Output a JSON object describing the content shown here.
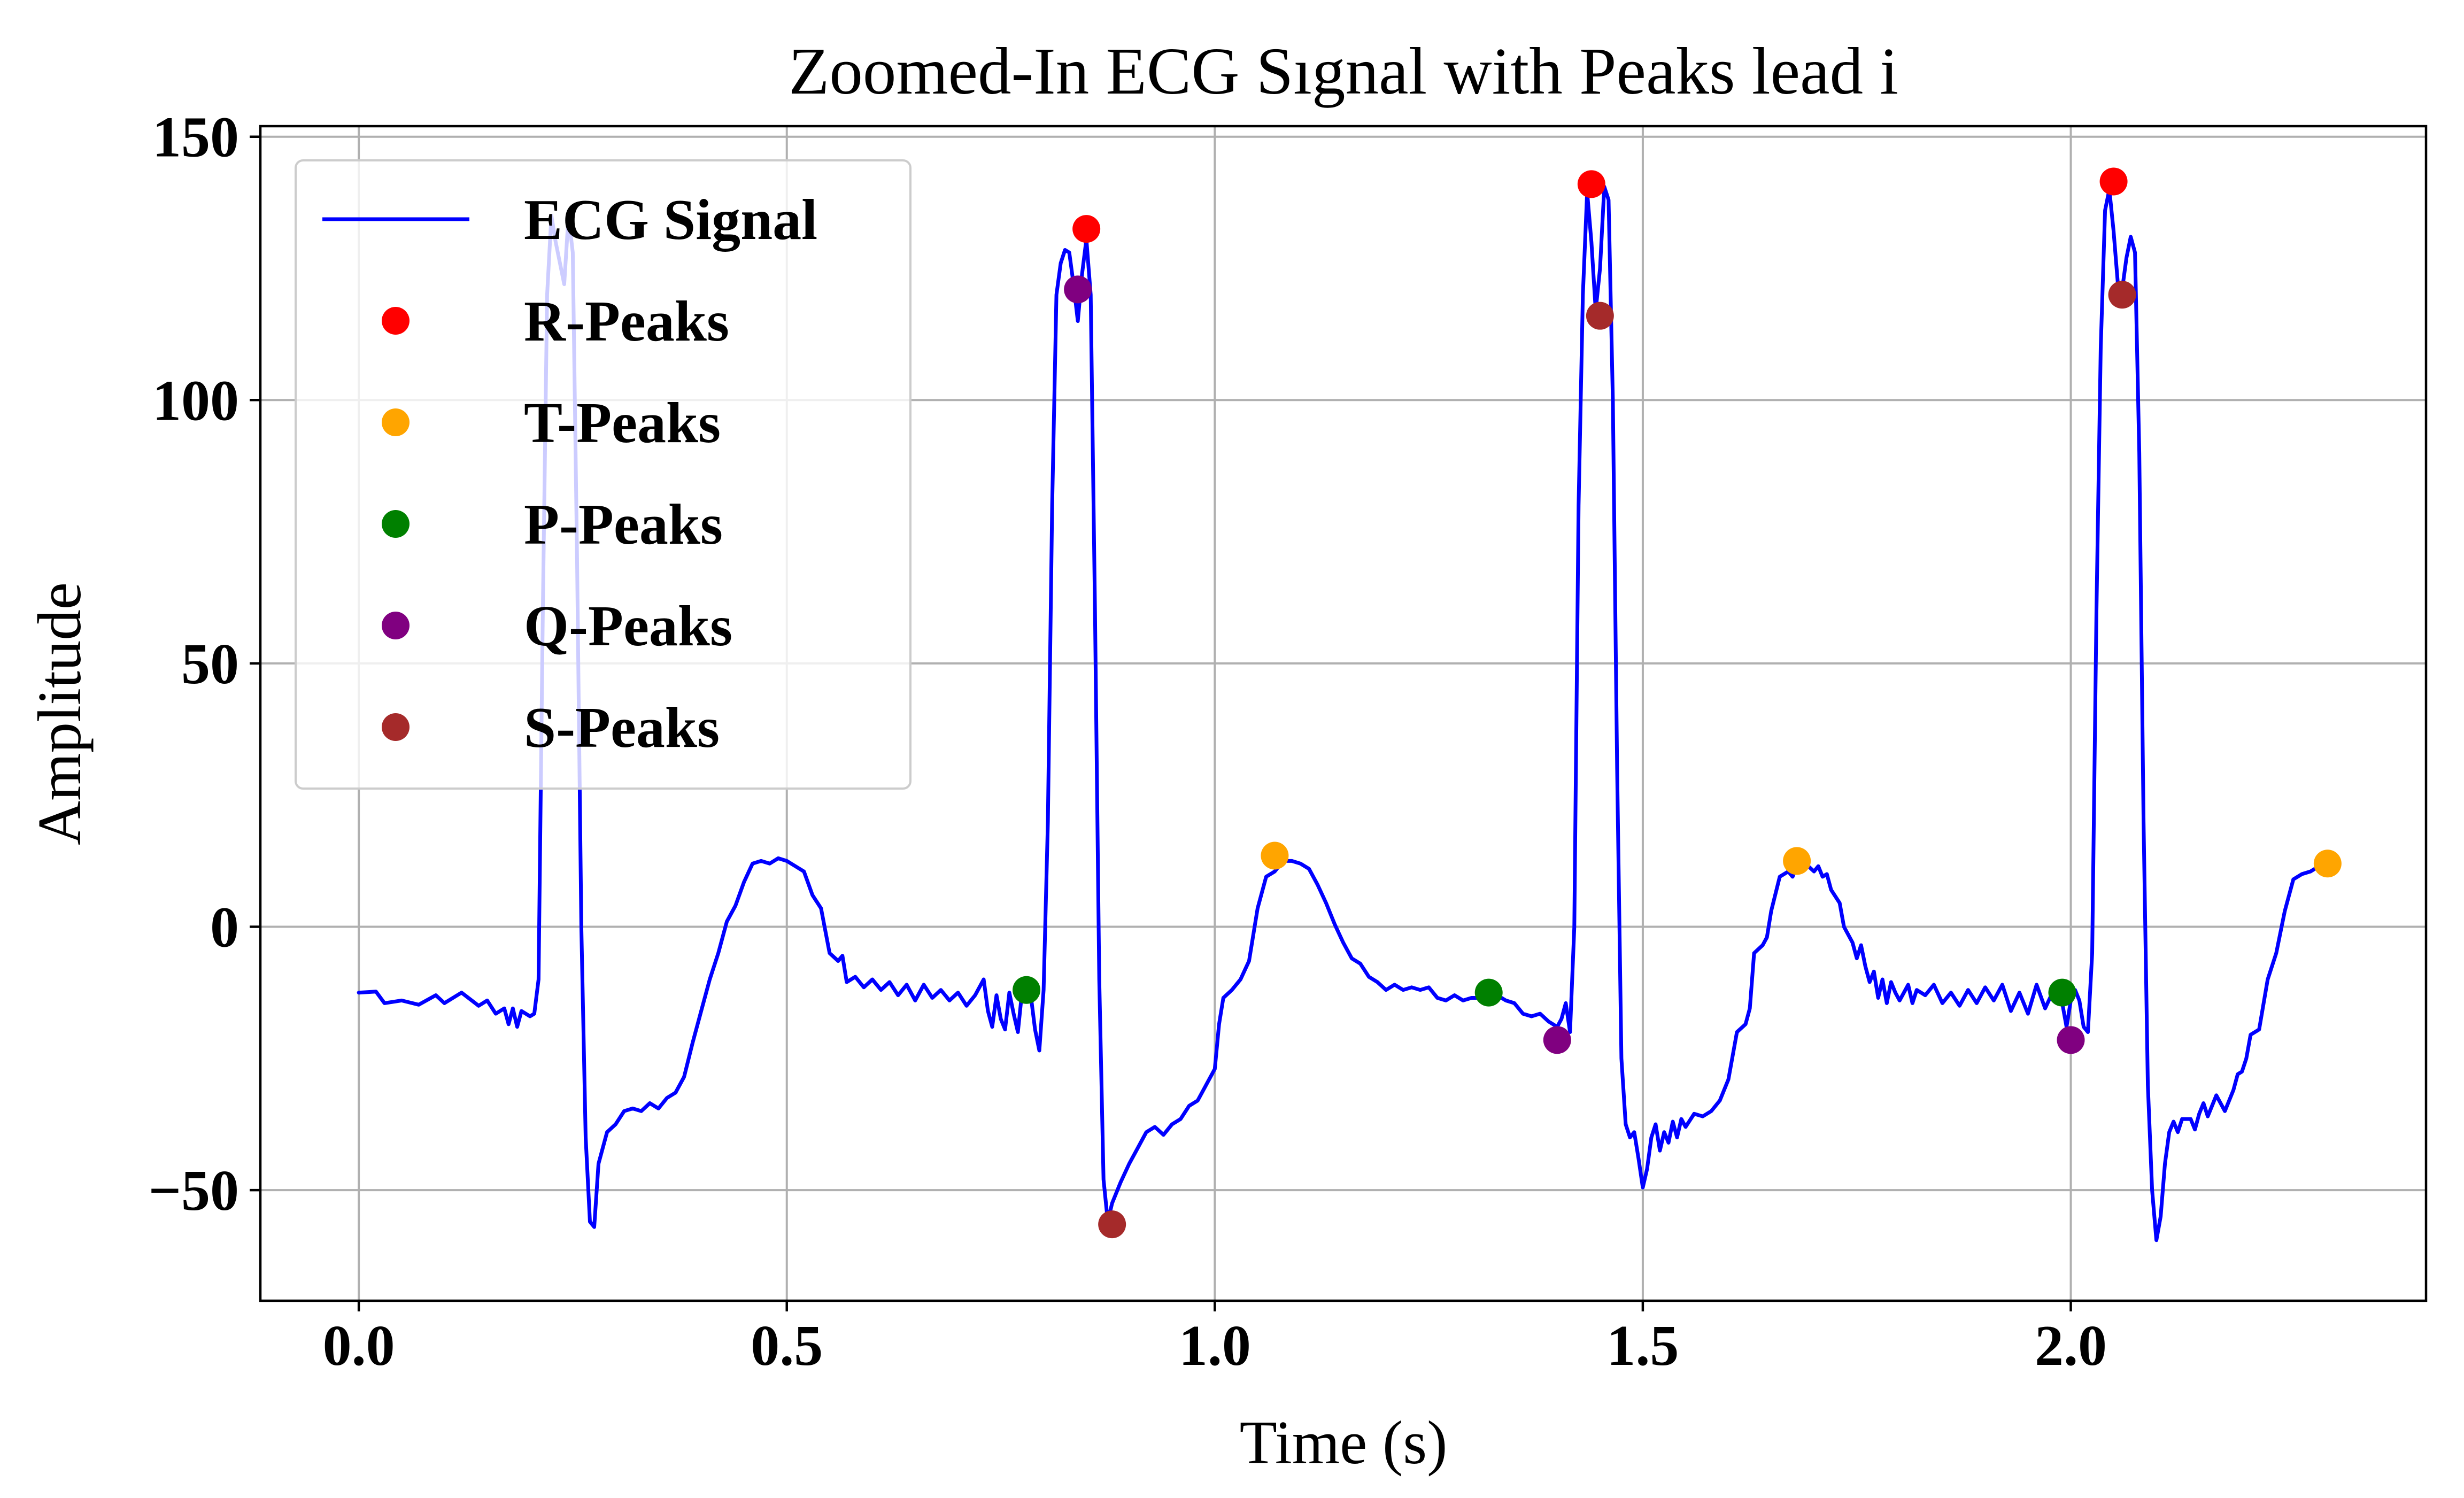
{
  "chart_data": {
    "type": "line",
    "title": "Zoomed-In ECG Sıgnal with Peaks lead i",
    "xlabel": "Time (s)",
    "ylabel": "Amplitude",
    "xlim": [
      -0.115,
      2.415
    ],
    "ylim": [
      -71,
      152
    ],
    "xticks": [
      0.0,
      0.5,
      1.0,
      1.5,
      2.0
    ],
    "xtick_labels": [
      "0.0",
      "0.5",
      "1.0",
      "1.5",
      "2.0"
    ],
    "yticks": [
      -50,
      0,
      50,
      100,
      150
    ],
    "ytick_labels": [
      "−50",
      "0",
      "50",
      "100",
      "150"
    ],
    "grid": true,
    "legend_position": "upper-left",
    "line_series": {
      "name": "ECG Signal",
      "color": "#0000ff",
      "points": [
        [
          0.0,
          -12.5
        ],
        [
          0.02,
          -12.3
        ],
        [
          0.03,
          -14.5
        ],
        [
          0.05,
          -14.0
        ],
        [
          0.07,
          -14.8
        ],
        [
          0.09,
          -13.0
        ],
        [
          0.1,
          -14.5
        ],
        [
          0.12,
          -12.5
        ],
        [
          0.14,
          -15.0
        ],
        [
          0.15,
          -14.0
        ],
        [
          0.16,
          -16.5
        ],
        [
          0.17,
          -15.5
        ],
        [
          0.175,
          -18.5
        ],
        [
          0.18,
          -15.5
        ],
        [
          0.185,
          -19.0
        ],
        [
          0.19,
          -16.0
        ],
        [
          0.2,
          -17.0
        ],
        [
          0.205,
          -16.5
        ],
        [
          0.21,
          -10.0
        ],
        [
          0.215,
          60.0
        ],
        [
          0.22,
          120.0
        ],
        [
          0.225,
          135.0
        ],
        [
          0.23,
          130.0
        ],
        [
          0.24,
          122.0
        ],
        [
          0.245,
          135.0
        ],
        [
          0.25,
          128.0
        ],
        [
          0.255,
          70.0
        ],
        [
          0.26,
          0.0
        ],
        [
          0.265,
          -40.0
        ],
        [
          0.27,
          -56.0
        ],
        [
          0.275,
          -57.0
        ],
        [
          0.28,
          -45.0
        ],
        [
          0.29,
          -39.0
        ],
        [
          0.3,
          -37.5
        ],
        [
          0.31,
          -35.0
        ],
        [
          0.32,
          -34.5
        ],
        [
          0.33,
          -35.0
        ],
        [
          0.34,
          -33.5
        ],
        [
          0.35,
          -34.5
        ],
        [
          0.36,
          -32.5
        ],
        [
          0.37,
          -31.5
        ],
        [
          0.38,
          -28.5
        ],
        [
          0.39,
          -22.0
        ],
        [
          0.4,
          -16.0
        ],
        [
          0.41,
          -10.0
        ],
        [
          0.42,
          -5.0
        ],
        [
          0.43,
          1.0
        ],
        [
          0.44,
          4.0
        ],
        [
          0.45,
          8.5
        ],
        [
          0.46,
          12.0
        ],
        [
          0.47,
          12.5
        ],
        [
          0.48,
          12.0
        ],
        [
          0.49,
          13.0
        ],
        [
          0.5,
          12.5
        ],
        [
          0.51,
          11.5
        ],
        [
          0.52,
          10.5
        ],
        [
          0.53,
          6.0
        ],
        [
          0.54,
          3.5
        ],
        [
          0.55,
          -5.0
        ],
        [
          0.56,
          -6.5
        ],
        [
          0.565,
          -5.5
        ],
        [
          0.57,
          -10.5
        ],
        [
          0.58,
          -9.5
        ],
        [
          0.59,
          -11.5
        ],
        [
          0.6,
          -10.0
        ],
        [
          0.61,
          -12.0
        ],
        [
          0.62,
          -10.5
        ],
        [
          0.63,
          -13.0
        ],
        [
          0.64,
          -11.0
        ],
        [
          0.65,
          -14.0
        ],
        [
          0.66,
          -11.0
        ],
        [
          0.67,
          -13.5
        ],
        [
          0.68,
          -12.0
        ],
        [
          0.69,
          -14.0
        ],
        [
          0.7,
          -12.5
        ],
        [
          0.71,
          -15.0
        ],
        [
          0.72,
          -13.0
        ],
        [
          0.73,
          -10.0
        ],
        [
          0.735,
          -16.0
        ],
        [
          0.74,
          -19.0
        ],
        [
          0.745,
          -13.0
        ],
        [
          0.75,
          -17.5
        ],
        [
          0.755,
          -19.5
        ],
        [
          0.76,
          -12.5
        ],
        [
          0.765,
          -16.5
        ],
        [
          0.77,
          -20.0
        ],
        [
          0.775,
          -12.0
        ],
        [
          0.78,
          -14.0
        ],
        [
          0.785,
          -13.0
        ],
        [
          0.79,
          -19.5
        ],
        [
          0.795,
          -23.5
        ],
        [
          0.8,
          -12.0
        ],
        [
          0.805,
          20.0
        ],
        [
          0.81,
          80.0
        ],
        [
          0.815,
          120.0
        ],
        [
          0.82,
          126.0
        ],
        [
          0.825,
          128.5
        ],
        [
          0.83,
          128.0
        ],
        [
          0.835,
          122.0
        ],
        [
          0.84,
          115.0
        ],
        [
          0.845,
          124.0
        ],
        [
          0.85,
          130.5
        ],
        [
          0.855,
          120.0
        ],
        [
          0.86,
          60.0
        ],
        [
          0.865,
          -10.0
        ],
        [
          0.87,
          -48.0
        ],
        [
          0.875,
          -56.0
        ],
        [
          0.88,
          -52.5
        ],
        [
          0.89,
          -48.5
        ],
        [
          0.9,
          -45.0
        ],
        [
          0.905,
          -43.5
        ],
        [
          0.91,
          -42.0
        ],
        [
          0.92,
          -39.0
        ],
        [
          0.93,
          -38.0
        ],
        [
          0.94,
          -39.5
        ],
        [
          0.95,
          -37.5
        ],
        [
          0.96,
          -36.5
        ],
        [
          0.97,
          -34.0
        ],
        [
          0.98,
          -33.0
        ],
        [
          0.99,
          -30.0
        ],
        [
          1.0,
          -27.0
        ],
        [
          1.005,
          -18.5
        ],
        [
          1.01,
          -13.5
        ],
        [
          1.02,
          -12.0
        ],
        [
          1.03,
          -10.0
        ],
        [
          1.04,
          -6.5
        ],
        [
          1.05,
          3.5
        ],
        [
          1.06,
          9.5
        ],
        [
          1.07,
          10.5
        ],
        [
          1.08,
          12.5
        ],
        [
          1.09,
          12.5
        ],
        [
          1.1,
          12.0
        ],
        [
          1.11,
          11.0
        ],
        [
          1.12,
          8.0
        ],
        [
          1.13,
          4.5
        ],
        [
          1.14,
          0.5
        ],
        [
          1.15,
          -3.0
        ],
        [
          1.16,
          -6.0
        ],
        [
          1.17,
          -7.0
        ],
        [
          1.18,
          -9.5
        ],
        [
          1.19,
          -10.5
        ],
        [
          1.2,
          -12.0
        ],
        [
          1.21,
          -11.0
        ],
        [
          1.22,
          -12.0
        ],
        [
          1.23,
          -11.5
        ],
        [
          1.24,
          -12.0
        ],
        [
          1.25,
          -11.5
        ],
        [
          1.26,
          -13.5
        ],
        [
          1.27,
          -14.0
        ],
        [
          1.28,
          -13.0
        ],
        [
          1.29,
          -14.0
        ],
        [
          1.3,
          -13.5
        ],
        [
          1.31,
          -13.5
        ],
        [
          1.32,
          -12.5
        ],
        [
          1.33,
          -13.0
        ],
        [
          1.34,
          -14.0
        ],
        [
          1.35,
          -14.5
        ],
        [
          1.36,
          -16.5
        ],
        [
          1.37,
          -17.0
        ],
        [
          1.38,
          -16.5
        ],
        [
          1.39,
          -18.0
        ],
        [
          1.4,
          -19.0
        ],
        [
          1.405,
          -17.5
        ],
        [
          1.41,
          -14.5
        ],
        [
          1.415,
          -20.0
        ],
        [
          1.42,
          0.0
        ],
        [
          1.425,
          80.0
        ],
        [
          1.43,
          120.0
        ],
        [
          1.435,
          139.5
        ],
        [
          1.44,
          130.0
        ],
        [
          1.445,
          117.0
        ],
        [
          1.45,
          125.0
        ],
        [
          1.455,
          140.5
        ],
        [
          1.46,
          138.0
        ],
        [
          1.465,
          100.0
        ],
        [
          1.47,
          30.0
        ],
        [
          1.475,
          -25.0
        ],
        [
          1.48,
          -37.5
        ],
        [
          1.485,
          -40.0
        ],
        [
          1.49,
          -39.0
        ],
        [
          1.495,
          -44.0
        ],
        [
          1.5,
          -49.5
        ],
        [
          1.505,
          -46.0
        ],
        [
          1.51,
          -40.0
        ],
        [
          1.515,
          -37.5
        ],
        [
          1.52,
          -42.5
        ],
        [
          1.525,
          -39.0
        ],
        [
          1.53,
          -41.0
        ],
        [
          1.535,
          -37.0
        ],
        [
          1.54,
          -40.0
        ],
        [
          1.545,
          -36.5
        ],
        [
          1.55,
          -38.0
        ],
        [
          1.56,
          -35.5
        ],
        [
          1.57,
          -36.0
        ],
        [
          1.58,
          -35.0
        ],
        [
          1.59,
          -33.0
        ],
        [
          1.6,
          -29.0
        ],
        [
          1.61,
          -20.0
        ],
        [
          1.62,
          -18.5
        ],
        [
          1.625,
          -15.5
        ],
        [
          1.63,
          -5.0
        ],
        [
          1.64,
          -3.5
        ],
        [
          1.645,
          -2.0
        ],
        [
          1.65,
          3.0
        ],
        [
          1.66,
          9.5
        ],
        [
          1.67,
          10.5
        ],
        [
          1.675,
          9.5
        ],
        [
          1.68,
          11.5
        ],
        [
          1.69,
          12.0
        ],
        [
          1.7,
          10.5
        ],
        [
          1.705,
          11.5
        ],
        [
          1.71,
          9.5
        ],
        [
          1.715,
          10.0
        ],
        [
          1.72,
          7.0
        ],
        [
          1.73,
          4.5
        ],
        [
          1.735,
          0.0
        ],
        [
          1.74,
          -1.5
        ],
        [
          1.745,
          -3.0
        ],
        [
          1.75,
          -6.0
        ],
        [
          1.755,
          -3.5
        ],
        [
          1.76,
          -7.5
        ],
        [
          1.765,
          -10.5
        ],
        [
          1.77,
          -8.5
        ],
        [
          1.775,
          -13.5
        ],
        [
          1.78,
          -10.0
        ],
        [
          1.785,
          -14.5
        ],
        [
          1.79,
          -10.5
        ],
        [
          1.795,
          -12.5
        ],
        [
          1.8,
          -14.0
        ],
        [
          1.81,
          -11.0
        ],
        [
          1.815,
          -14.5
        ],
        [
          1.82,
          -12.0
        ],
        [
          1.83,
          -13.0
        ],
        [
          1.84,
          -11.0
        ],
        [
          1.85,
          -14.5
        ],
        [
          1.86,
          -12.5
        ],
        [
          1.87,
          -15.0
        ],
        [
          1.88,
          -12.0
        ],
        [
          1.89,
          -14.5
        ],
        [
          1.9,
          -11.5
        ],
        [
          1.91,
          -14.0
        ],
        [
          1.92,
          -11.0
        ],
        [
          1.93,
          -16.0
        ],
        [
          1.94,
          -12.5
        ],
        [
          1.95,
          -16.5
        ],
        [
          1.96,
          -11.0
        ],
        [
          1.97,
          -15.5
        ],
        [
          1.98,
          -12.0
        ],
        [
          1.99,
          -14.5
        ],
        [
          1.995,
          -19.0
        ],
        [
          2.0,
          -14.0
        ],
        [
          2.005,
          -12.0
        ],
        [
          2.01,
          -14.0
        ],
        [
          2.015,
          -19.0
        ],
        [
          2.02,
          -20.0
        ],
        [
          2.025,
          -5.0
        ],
        [
          2.03,
          60.0
        ],
        [
          2.035,
          110.0
        ],
        [
          2.04,
          136.0
        ],
        [
          2.045,
          140.0
        ],
        [
          2.05,
          132.0
        ],
        [
          2.055,
          122.0
        ],
        [
          2.06,
          121.0
        ],
        [
          2.065,
          127.0
        ],
        [
          2.07,
          131.0
        ],
        [
          2.075,
          128.0
        ],
        [
          2.08,
          90.0
        ],
        [
          2.085,
          20.0
        ],
        [
          2.09,
          -30.0
        ],
        [
          2.095,
          -50.0
        ],
        [
          2.1,
          -59.5
        ],
        [
          2.105,
          -55.0
        ],
        [
          2.11,
          -45.0
        ],
        [
          2.115,
          -39.0
        ],
        [
          2.12,
          -37.0
        ],
        [
          2.125,
          -39.0
        ],
        [
          2.13,
          -36.5
        ],
        [
          2.14,
          -36.5
        ],
        [
          2.145,
          -38.5
        ],
        [
          2.15,
          -35.5
        ],
        [
          2.155,
          -33.5
        ],
        [
          2.16,
          -36.0
        ],
        [
          2.165,
          -34.0
        ],
        [
          2.17,
          -32.0
        ],
        [
          2.18,
          -35.0
        ],
        [
          2.19,
          -31.0
        ],
        [
          2.195,
          -28.0
        ],
        [
          2.2,
          -27.5
        ],
        [
          2.205,
          -25.0
        ],
        [
          2.21,
          -20.5
        ],
        [
          2.22,
          -19.5
        ],
        [
          2.23,
          -10.0
        ],
        [
          2.24,
          -5.0
        ],
        [
          2.25,
          3.0
        ],
        [
          2.26,
          9.0
        ],
        [
          2.27,
          10.0
        ],
        [
          2.28,
          10.5
        ],
        [
          2.29,
          11.5
        ],
        [
          2.3,
          12.0
        ]
      ]
    },
    "scatter_series": [
      {
        "name": "R-Peaks",
        "color": "#ff0000",
        "points": [
          [
            0.85,
            132.5
          ],
          [
            1.44,
            141.0
          ],
          [
            2.05,
            141.5
          ]
        ]
      },
      {
        "name": "T-Peaks",
        "color": "#ffa500",
        "points": [
          [
            1.07,
            13.5
          ],
          [
            1.68,
            12.5
          ],
          [
            2.3,
            12.0
          ]
        ]
      },
      {
        "name": "P-Peaks",
        "color": "#008000",
        "points": [
          [
            0.78,
            -12.0
          ],
          [
            1.32,
            -12.5
          ],
          [
            1.99,
            -12.5
          ]
        ]
      },
      {
        "name": "Q-Peaks",
        "color": "#800080",
        "points": [
          [
            0.84,
            121.0
          ],
          [
            1.4,
            -21.5
          ],
          [
            2.0,
            -21.5
          ]
        ]
      },
      {
        "name": "S-Peaks",
        "color": "#a52a2a",
        "points": [
          [
            0.88,
            -56.5
          ],
          [
            1.45,
            116.0
          ],
          [
            2.06,
            120.0
          ]
        ]
      }
    ]
  }
}
